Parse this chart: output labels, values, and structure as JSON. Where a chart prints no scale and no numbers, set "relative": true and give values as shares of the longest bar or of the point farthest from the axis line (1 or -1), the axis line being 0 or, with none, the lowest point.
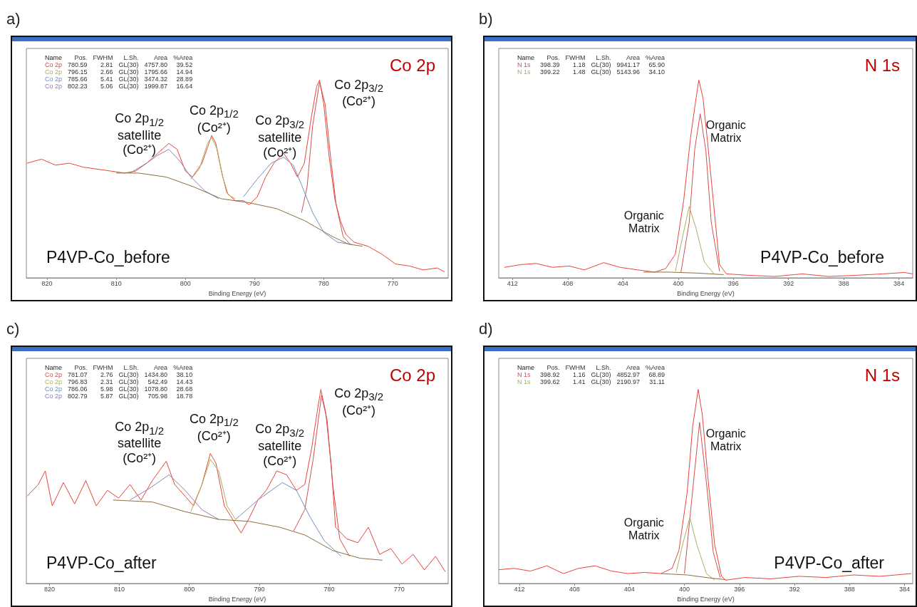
{
  "chart_data": [
    {
      "type": "line",
      "title": "Co 2p",
      "subtitle": "P4VP-Co_before",
      "xlabel": "Binding Energy (eV)",
      "relative": true,
      "marker": "none",
      "xlim": [
        823,
        762
      ],
      "xticks": [
        820,
        810,
        800,
        790,
        780,
        770
      ],
      "annotations": [
        "a)",
        "Name  Pos.  FWHM  L.Sh.  Area  %Area",
        "Co 2p  780.59  2.81  GL(30)  4757.80  39.52",
        "Co 2p  796.15  2.66  GL(30)  1795.66  14.94",
        "Co 2p  785.66  5.41  GL(30)  3474.32  28.89",
        "Co 2p  802.23  5.06  GL(30)  1999.87  16.64",
        "Co 2p$_{1/2}$\nsatellite\n(Co²⁺)",
        "Co 2p$_{1/2}$\n(Co²⁺)",
        "Co 2p$_{3/2}$\nsatellite\n(Co²⁺)",
        "Co 2p$_{3/2}$\n(Co²⁺)"
      ],
      "series": [
        {
          "color": "#e8453c",
          "x": [
            822.9,
            820.8,
            818.8,
            816.8,
            814.8,
            812.8,
            810.8,
            808.8,
            807.2,
            805.6,
            804.0,
            802.4,
            801.2,
            800.0,
            799.0,
            797.6,
            796.8,
            796.2,
            795.6,
            794.8,
            794.0,
            792.8,
            791.6,
            790.8,
            789.6,
            788.4,
            787.2,
            785.8,
            784.8,
            783.8,
            782.8,
            781.8,
            781.0,
            780.6,
            780.0,
            779.2,
            778.4,
            777.6,
            776.8,
            775.6,
            773.6,
            771.6,
            769.6,
            767.6,
            765.6,
            763.6,
            762.5
          ],
          "values": [
            0.58,
            0.6,
            0.57,
            0.58,
            0.56,
            0.55,
            0.54,
            0.53,
            0.54,
            0.58,
            0.63,
            0.68,
            0.65,
            0.54,
            0.51,
            0.58,
            0.66,
            0.72,
            0.68,
            0.54,
            0.43,
            0.39,
            0.39,
            0.37,
            0.41,
            0.51,
            0.58,
            0.63,
            0.58,
            0.51,
            0.58,
            0.81,
            0.97,
            1.0,
            0.88,
            0.61,
            0.4,
            0.29,
            0.22,
            0.18,
            0.16,
            0.12,
            0.07,
            0.06,
            0.04,
            0.05,
            0.03
          ]
        },
        {
          "color": "#d05050",
          "x": [
            783.2,
            782.4,
            781.6,
            780.6,
            779.8,
            779.0,
            778.2,
            777.2,
            776.2
          ],
          "values": [
            0.33,
            0.46,
            0.77,
            0.99,
            0.88,
            0.61,
            0.37,
            0.21,
            0.17
          ]
        },
        {
          "color": "#a8b060",
          "x": [
            799.2,
            798.0,
            796.8,
            796.2,
            795.4,
            794.6,
            793.8,
            792.8
          ],
          "values": [
            0.5,
            0.55,
            0.68,
            0.71,
            0.65,
            0.51,
            0.42,
            0.4
          ]
        },
        {
          "color": "#7090c0",
          "x": [
            791.6,
            789.6,
            787.6,
            785.8,
            784.4,
            783.2,
            781.6,
            780.0,
            778.0,
            776.0
          ],
          "values": [
            0.41,
            0.5,
            0.58,
            0.61,
            0.57,
            0.47,
            0.33,
            0.23,
            0.18,
            0.17
          ]
        },
        {
          "color": "#9080b0",
          "x": [
            808.0,
            805.6,
            804.0,
            802.4,
            800.8,
            799.2,
            797.2,
            795.2
          ],
          "values": [
            0.53,
            0.58,
            0.62,
            0.65,
            0.59,
            0.51,
            0.44,
            0.4
          ]
        },
        {
          "color": "#8a7040",
          "x": [
            810.0,
            806.8,
            802.8,
            798.8,
            794.8,
            790.8,
            786.8,
            782.8,
            778.8,
            776.4,
            774.4
          ],
          "values": [
            0.53,
            0.53,
            0.51,
            0.46,
            0.4,
            0.38,
            0.35,
            0.29,
            0.21,
            0.17,
            0.16
          ]
        }
      ]
    },
    {
      "type": "line",
      "title": "N 1s",
      "subtitle": "P4VP-Co_before",
      "xlabel": "Binding Energy (eV)",
      "relative": true,
      "marker": "none",
      "xlim": [
        413,
        383
      ],
      "xticks": [
        412,
        408,
        404,
        400,
        396,
        392,
        388,
        384
      ],
      "annotations": [
        "b)",
        "Name  Pos.  FWHM  L.Sh.  Area  %Area",
        "N 1s  398.39  1.18  GL(30)  9941.17  65.90",
        "N 1s  399.22  1.48  GL(30)  5143.96  34.10",
        "Organic\nMatrix",
        "Organic\nMatrix"
      ],
      "series": [
        {
          "color": "#e8453c",
          "x": [
            412.6,
            411.4,
            410.3,
            409.1,
            407.9,
            406.8,
            405.4,
            404.2,
            402.9,
            401.7,
            400.9,
            400.2,
            399.6,
            399.1,
            398.7,
            398.5,
            398.2,
            397.8,
            397.3,
            397.0,
            396.5,
            394.9,
            393.0,
            391.0,
            389.1,
            387.1,
            385.2,
            383.6,
            383.0
          ],
          "values": [
            0.053,
            0.067,
            0.073,
            0.053,
            0.06,
            0.04,
            0.077,
            0.053,
            0.04,
            0.029,
            0.047,
            0.12,
            0.39,
            0.71,
            0.91,
            1.0,
            0.91,
            0.64,
            0.28,
            0.067,
            0.02,
            0.013,
            0.007,
            0.02,
            0.007,
            0.013,
            0.02,
            0.027,
            0.02
          ]
        },
        {
          "color": "#d05050",
          "x": [
            399.8,
            399.2,
            398.8,
            398.4,
            398.0,
            397.6,
            397.0
          ],
          "values": [
            0.027,
            0.28,
            0.65,
            0.83,
            0.65,
            0.28,
            0.033
          ]
        },
        {
          "color": "#a8b060",
          "x": [
            400.2,
            399.7,
            399.2,
            398.7,
            398.1,
            397.4
          ],
          "values": [
            0.033,
            0.2,
            0.36,
            0.25,
            0.08,
            0.02
          ]
        },
        {
          "color": "#8a7040",
          "x": [
            402.5,
            400.7,
            398.6,
            396.7
          ],
          "values": [
            0.029,
            0.029,
            0.024,
            0.016
          ]
        }
      ]
    },
    {
      "type": "line",
      "title": "Co 2p",
      "subtitle": "P4VP-Co_after",
      "xlabel": "Binding Energy (eV)",
      "relative": true,
      "marker": "none",
      "xlim": [
        823.3,
        763
      ],
      "xticks": [
        820,
        810,
        800,
        790,
        780,
        770
      ],
      "annotations": [
        "c)",
        "Name  Pos.  FWHM  L.Sh.  Area  %Area",
        "Co 2p  781.07  2.76  GL(30)  1434.80  38.10",
        "Co 2p  796.83  2.31  GL(30)  542.49  14.43",
        "Co 2p  786.06  5.98  GL(30)  1078.80  28.68",
        "Co 2p  802.79  5.87  GL(30)  705.98  18.78",
        "Co 2p$_{1/2}$\nsatellite\n(Co²⁺)",
        "Co 2p$_{1/2}$\n(Co²⁺)",
        "Co 2p$_{3/2}$\nsatellite\n(Co²⁺)",
        "Co 2p$_{3/2}$\n(Co²⁺)"
      ],
      "series": [
        {
          "color": "#e8453c",
          "x": [
            823.2,
            821.6,
            820.6,
            819.6,
            818.0,
            816.4,
            814.8,
            813.3,
            811.7,
            810.1,
            808.5,
            806.9,
            805.3,
            803.3,
            802.1,
            800.6,
            799.4,
            798.2,
            797.0,
            796.2,
            795.0,
            793.8,
            792.6,
            791.4,
            790.2,
            789.0,
            787.5,
            786.1,
            784.7,
            783.5,
            782.5,
            781.7,
            781.2,
            780.5,
            779.7,
            779.1,
            777.5,
            775.9,
            774.4,
            772.8,
            771.2,
            769.6,
            768.0,
            766.4,
            764.8,
            763.4
          ],
          "values": [
            0.45,
            0.51,
            0.58,
            0.4,
            0.52,
            0.41,
            0.53,
            0.4,
            0.48,
            0.44,
            0.51,
            0.43,
            0.53,
            0.63,
            0.51,
            0.45,
            0.4,
            0.51,
            0.67,
            0.62,
            0.4,
            0.33,
            0.26,
            0.34,
            0.43,
            0.48,
            0.58,
            0.56,
            0.48,
            0.51,
            0.7,
            0.89,
            1.0,
            0.88,
            0.6,
            0.29,
            0.23,
            0.21,
            0.29,
            0.15,
            0.18,
            0.1,
            0.15,
            0.07,
            0.14,
            0.06
          ]
        },
        {
          "color": "#d05050",
          "x": [
            785.1,
            783.5,
            782.3,
            781.1,
            780.3,
            779.5,
            778.5,
            777.1
          ],
          "values": [
            0.27,
            0.38,
            0.64,
            0.97,
            0.84,
            0.51,
            0.23,
            0.14
          ]
        },
        {
          "color": "#a8b060",
          "x": [
            799.8,
            798.2,
            797.0,
            795.8,
            794.6,
            793.4
          ],
          "values": [
            0.37,
            0.51,
            0.64,
            0.58,
            0.4,
            0.33
          ]
        },
        {
          "color": "#7090c0",
          "x": [
            793.4,
            790.2,
            786.7,
            784.7,
            782.7,
            780.7,
            778.3
          ],
          "values": [
            0.33,
            0.43,
            0.52,
            0.48,
            0.34,
            0.22,
            0.14
          ]
        },
        {
          "color": "#9080b0",
          "x": [
            808.5,
            805.7,
            802.9,
            800.6,
            798.2,
            795.8
          ],
          "values": [
            0.43,
            0.49,
            0.56,
            0.48,
            0.38,
            0.33
          ]
        },
        {
          "color": "#8a7040",
          "x": [
            810.9,
            805.3,
            800.6,
            795.8,
            791.4,
            787.1,
            783.5,
            779.5,
            775.6,
            772.4
          ],
          "values": [
            0.43,
            0.42,
            0.37,
            0.33,
            0.32,
            0.29,
            0.25,
            0.17,
            0.13,
            0.12
          ]
        }
      ]
    },
    {
      "type": "line",
      "title": "N 1s",
      "subtitle": "P4VP-Co_after",
      "xlabel": "Binding Energy (eV)",
      "relative": true,
      "marker": "none",
      "xlim": [
        413.5,
        383.4
      ],
      "xticks": [
        412,
        408,
        404,
        400,
        396,
        392,
        388,
        384
      ],
      "annotations": [
        "d)",
        "Name  Pos.  FWHM  L.Sh.  Area  %Area",
        "N 1s  398.92  1.16  GL(30)  4852.97  68.89",
        "N 1s  399.62  1.41  GL(30)  2190.97  31.11",
        "Organic\nMatrix",
        "Organic\nMatrix"
      ],
      "series": [
        {
          "color": "#e8453c",
          "x": [
            413.5,
            412.4,
            411.2,
            410.0,
            408.8,
            407.7,
            406.5,
            405.3,
            404.1,
            402.9,
            401.7,
            400.9,
            400.4,
            399.8,
            399.4,
            399.0,
            398.7,
            398.3,
            397.8,
            397.3,
            397.0,
            395.6,
            393.7,
            391.7,
            389.7,
            387.7,
            385.8,
            383.5
          ],
          "values": [
            0.071,
            0.078,
            0.064,
            0.091,
            0.051,
            0.078,
            0.091,
            0.064,
            0.051,
            0.057,
            0.051,
            0.078,
            0.17,
            0.47,
            0.81,
            1.0,
            0.87,
            0.55,
            0.2,
            0.037,
            0.017,
            0.031,
            0.024,
            0.037,
            0.031,
            0.044,
            0.037,
            0.051
          ]
        },
        {
          "color": "#d05050",
          "x": [
            400.0,
            399.5,
            398.9,
            398.4,
            397.9,
            397.4
          ],
          "values": [
            0.051,
            0.41,
            0.83,
            0.52,
            0.16,
            0.031
          ]
        },
        {
          "color": "#a8b060",
          "x": [
            400.6,
            400.1,
            399.6,
            399.1,
            398.4,
            397.8
          ],
          "values": [
            0.057,
            0.21,
            0.34,
            0.2,
            0.051,
            0.017
          ]
        },
        {
          "color": "#8a7040",
          "x": [
            401.7,
            399.8,
            398.0,
            397.0
          ],
          "values": [
            0.051,
            0.044,
            0.027,
            0.02
          ]
        }
      ]
    }
  ]
}
